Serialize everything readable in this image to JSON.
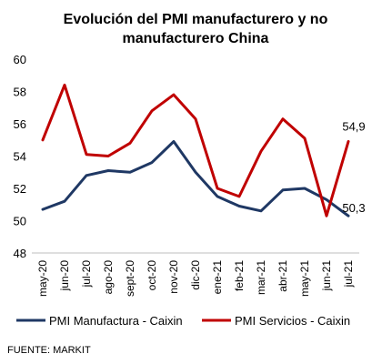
{
  "source": "FUENTE: MARKIT",
  "chart_data": {
    "type": "line",
    "title_lines": [
      "Evolución  del PMI manufacturero  y no",
      "manufacturero  China"
    ],
    "categories": [
      "may-20",
      "jun-20",
      "jul-20",
      "ago-20",
      "sept-20",
      "oct-20",
      "nov-20",
      "dic-20",
      "ene-21",
      "feb-21",
      "mar-21",
      "abr-21",
      "may-21",
      "jun-21",
      "jul-21"
    ],
    "ylim": [
      48,
      60
    ],
    "yticks": [
      "48",
      "50",
      "52",
      "54",
      "56",
      "58",
      "60"
    ],
    "grid": false,
    "legend_position": "bottom",
    "series": [
      {
        "name": "PMI Manufactura - Caixin",
        "color": "#1f3864",
        "values": [
          50.7,
          51.2,
          52.8,
          53.1,
          53.0,
          53.6,
          54.9,
          53.0,
          51.5,
          50.9,
          50.6,
          51.9,
          52.0,
          51.3,
          50.3
        ],
        "end_label": "50,3"
      },
      {
        "name": "PMI Servicios - Caixin",
        "color": "#c00000",
        "values": [
          55.0,
          58.4,
          54.1,
          54.0,
          54.8,
          56.8,
          57.8,
          56.3,
          52.0,
          51.5,
          54.3,
          56.3,
          55.1,
          50.3,
          54.9
        ],
        "end_label": "54,9"
      }
    ]
  }
}
